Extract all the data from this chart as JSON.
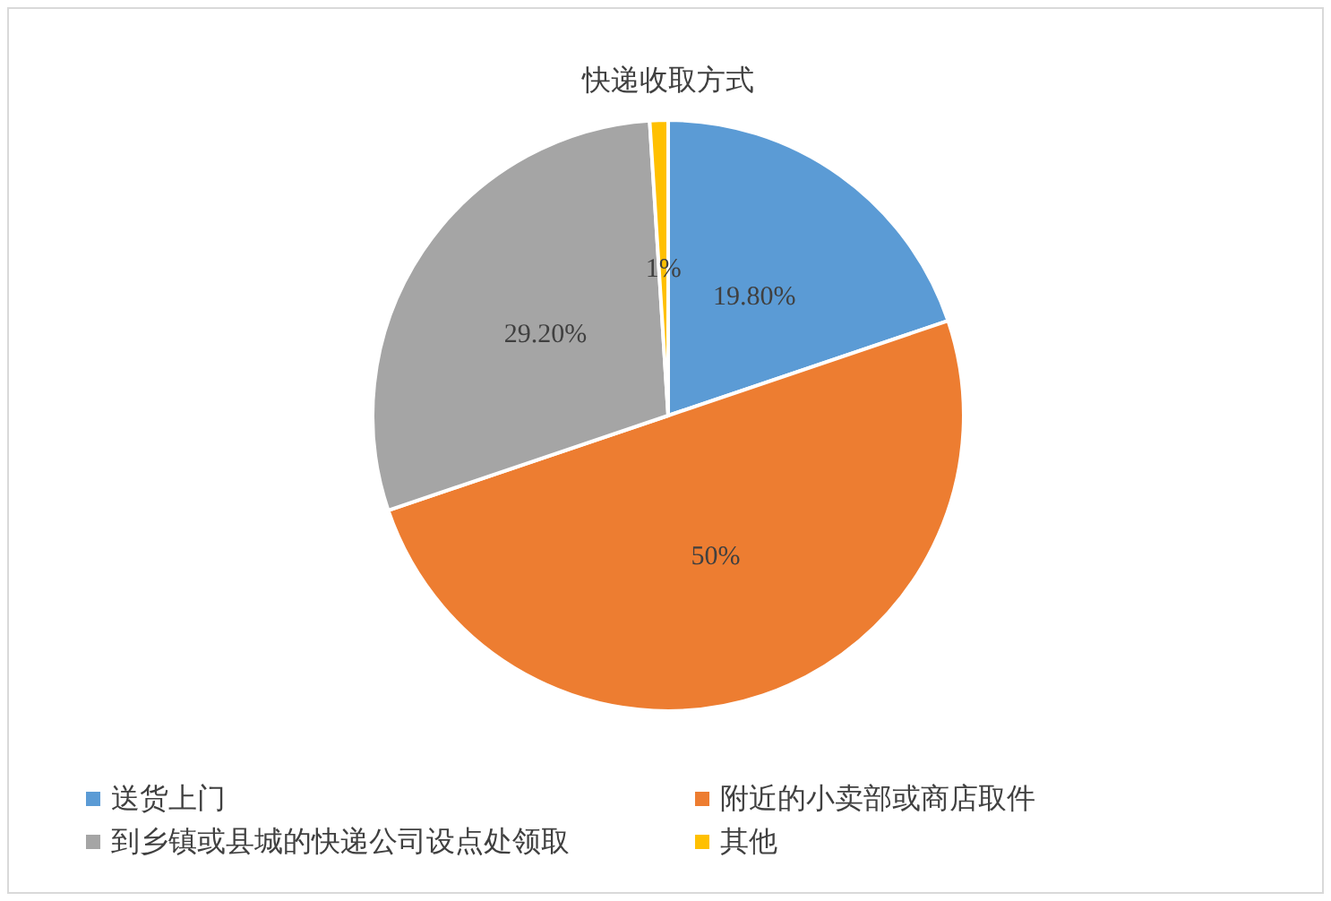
{
  "chart_data": {
    "type": "pie",
    "title": "快递收取方式",
    "categories": [
      "送货上门",
      "附近的小卖部或商店取件",
      "到乡镇或县城的快递公司设点处领取",
      "其他"
    ],
    "values": [
      19.8,
      50,
      29.2,
      1
    ],
    "colors": [
      "#5b9bd5",
      "#ed7d31",
      "#a5a5a5",
      "#ffc000"
    ],
    "value_labels": [
      "19.80%",
      "50%",
      "29.20%",
      "1%"
    ],
    "legend": "bottom"
  }
}
